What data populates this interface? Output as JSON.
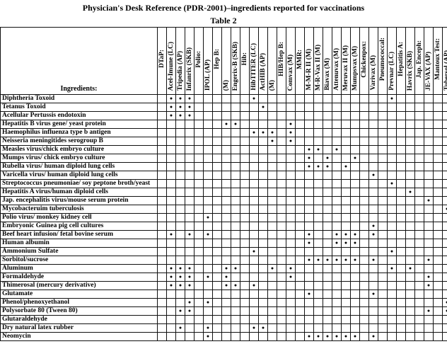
{
  "title": "Physician's Desk Reference (PDR-2001)–ingredients reported for vaccinations",
  "subtitle": "Table 2",
  "ingredients_header": "Ingredients:",
  "mark": "●",
  "columns": [
    {
      "label": "DTaP:",
      "category": true
    },
    {
      "label": "Acel-Imune (LC)"
    },
    {
      "label": "Tripedia (AP)"
    },
    {
      "label": "Infanrix (SKB)"
    },
    {
      "label": "Polio:",
      "category": true
    },
    {
      "label": "IPOL (AP)"
    },
    {
      "label": "Hep B:",
      "category": true
    },
    {
      "label": "(M)"
    },
    {
      "label": "Engerix-B (SKB)"
    },
    {
      "label": "Hib:",
      "category": true
    },
    {
      "label": "HibTITER (LC)"
    },
    {
      "label": "ActHIB (AP)"
    },
    {
      "label": "(M)"
    },
    {
      "label": "HIB/Hep B:",
      "category": true
    },
    {
      "label": "Comvax (M)"
    },
    {
      "label": "MMR:",
      "category": true
    },
    {
      "label": "M-M-R II (M)"
    },
    {
      "label": "M-R-Vax II (M)"
    },
    {
      "label": "Biavax (M)"
    },
    {
      "label": "Attenuvax (M)"
    },
    {
      "label": "Meruvax II (M)"
    },
    {
      "label": "Mumpsvax (M)"
    },
    {
      "label": "Chickenpox:",
      "category": true
    },
    {
      "label": "Varivax (M)"
    },
    {
      "label": "Pneumococcal:",
      "category": true
    },
    {
      "label": "Prevnar (LC)"
    },
    {
      "label": "Hepatitis A:",
      "category": true
    },
    {
      "label": "Havrix (SKB)"
    },
    {
      "label": "Jap. Enceph:",
      "category": true
    },
    {
      "label": "JE-VAX (AP)"
    },
    {
      "label": "Mantoux Test:",
      "category": true
    },
    {
      "label": "Tubersol (AP)"
    }
  ],
  "rows": [
    {
      "name": "Diphtheria Toxoid",
      "marks": [
        1,
        2,
        3,
        10,
        25
      ]
    },
    {
      "name": "Tetanus Toxoid",
      "marks": [
        1,
        2,
        3,
        11
      ]
    },
    {
      "name": "Acellular Pertussis endotoxin",
      "marks": [
        1,
        2,
        3
      ]
    },
    {
      "name": "Hepatitis B virus gene/ yeast protein",
      "marks": [
        7,
        8,
        14
      ]
    },
    {
      "name": "Haemophilus influenza type b antigen",
      "marks": [
        10,
        11,
        12,
        14
      ]
    },
    {
      "name": "Neisseria meningitides serogroup B",
      "marks": [
        12,
        14
      ]
    },
    {
      "name": "Measles virus/chick embryo culture",
      "marks": [
        16,
        17,
        19
      ]
    },
    {
      "name": "Mumps virus/ chick embryo culture",
      "marks": [
        16,
        18,
        21
      ]
    },
    {
      "name": "Rubella virus/ human diploid lung cells",
      "marks": [
        16,
        17,
        18,
        20
      ]
    },
    {
      "name": "Varicella virus/ human diploid lung cells",
      "marks": [
        23
      ]
    },
    {
      "name": "Streptococcus pneumoniae/ soy peptone broth/yeast",
      "marks": [
        25
      ]
    },
    {
      "name": "Hepatitis A virus/human diploid cells",
      "marks": [
        27
      ]
    },
    {
      "name": "Jap. encephalitis virus/mouse serum protein",
      "marks": [
        29
      ]
    },
    {
      "name": "Mycobacteruim tuberculosis",
      "marks": [
        31
      ]
    },
    {
      "name": "Polio virus/ monkey kidney cell",
      "marks": [
        5
      ]
    },
    {
      "name": "Embryonic Guinea pig cell cultures",
      "marks": [
        23
      ]
    },
    {
      "name": "Beef heart infusion/ fetal bovine serum",
      "marks": [
        1,
        3,
        5,
        16,
        19,
        20,
        21,
        23
      ]
    },
    {
      "name": "Human albumin",
      "marks": [
        16,
        19,
        20,
        21
      ]
    },
    {
      "name": "Ammonium Sulfate",
      "marks": [
        10,
        25
      ]
    },
    {
      "name": "Sorbitol/sucrose",
      "marks": [
        16,
        17,
        18,
        19,
        20,
        21,
        23,
        29
      ]
    },
    {
      "name": "Aluminum",
      "marks": [
        1,
        2,
        3,
        7,
        8,
        12,
        14,
        25,
        27
      ]
    },
    {
      "name": "Formaldehyde",
      "marks": [
        1,
        2,
        3,
        5,
        7,
        14,
        29
      ]
    },
    {
      "name": "Thimerosal (mercury derivative)",
      "marks": [
        1,
        2,
        3,
        7,
        8,
        10,
        29
      ]
    },
    {
      "name": "Glutamate",
      "marks": [
        16,
        23
      ]
    },
    {
      "name": "Phenol/phenoxyethanol",
      "marks": [
        3,
        5,
        31
      ]
    },
    {
      "name": "Polysorbate 80 (Tween 80)",
      "marks": [
        2,
        3,
        29,
        31
      ]
    },
    {
      "name": "Glutaraldehyde",
      "marks": []
    },
    {
      "name": "Dry natural latex rubber",
      "marks": [
        2,
        5,
        10,
        11
      ]
    },
    {
      "name": "Neomycin",
      "marks": [
        5,
        16,
        17,
        18,
        19,
        20,
        21,
        23
      ]
    }
  ]
}
